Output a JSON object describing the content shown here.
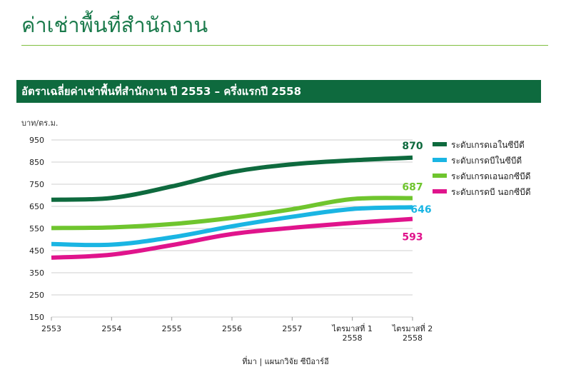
{
  "page": {
    "title": "ค่าเช่าพื้นที่สำนักงาน",
    "banner": "อัตราเฉลี่ยค่าเช่าพื้นที่สำนักงาน ปี 2553 – ครึ่งแรกปี 2558",
    "source": "ที่มา | แผนกวิจัย ซีบีอาร์อี"
  },
  "chart_data": {
    "type": "line",
    "ylabel": "บาท/ตร.ม.",
    "ylim": [
      150,
      950
    ],
    "yticks": [
      150,
      250,
      350,
      450,
      550,
      650,
      750,
      850,
      950
    ],
    "grid": "horizontal",
    "legend_position": "right",
    "categories": [
      {
        "line1": "2553",
        "line2": ""
      },
      {
        "line1": "2554",
        "line2": ""
      },
      {
        "line1": "2555",
        "line2": ""
      },
      {
        "line1": "2556",
        "line2": ""
      },
      {
        "line1": "2557",
        "line2": ""
      },
      {
        "line1": "ไตรมาสที่ 1",
        "line2": "2558"
      },
      {
        "line1": "ไตรมาสที่ 2",
        "line2": "2558"
      }
    ],
    "series": [
      {
        "name": "ระดับเกรดเอในซีบีดี",
        "color": "#0e6a3e",
        "values": [
          680,
          688,
          740,
          805,
          840,
          858,
          870
        ],
        "end_label": "870"
      },
      {
        "name": "ระดับเกรดบีในซีบีดี",
        "color": "#1ab5e3",
        "values": [
          480,
          477,
          510,
          560,
          603,
          638,
          646
        ],
        "end_label": "646"
      },
      {
        "name": "ระดับเกรดเอนอกซีบีดี",
        "color": "#6fc52e",
        "values": [
          552,
          555,
          570,
          598,
          637,
          683,
          687
        ],
        "end_label": "687"
      },
      {
        "name": "ระดับเกรดบี นอกซีบีดี",
        "color": "#e0148c",
        "values": [
          418,
          432,
          475,
          525,
          553,
          575,
          593
        ],
        "end_label": "593"
      }
    ]
  }
}
